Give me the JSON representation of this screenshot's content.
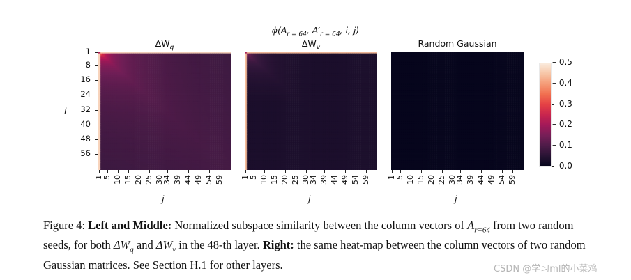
{
  "figure": {
    "suptitle": "ϕ(A_{r=64}, A'_{r=64}, i, j)",
    "panels": [
      {
        "title": "ΔW_q"
      },
      {
        "title": "ΔW_v"
      },
      {
        "title": "Random Gaussian"
      }
    ],
    "ylabel": "i",
    "xlabel": "j",
    "ytick_labels": [
      "1",
      "8",
      "16",
      "24",
      "32",
      "40",
      "48",
      "56"
    ],
    "xtick_labels": [
      "1",
      "5",
      "10",
      "15",
      "20",
      "25",
      "30",
      "34",
      "39",
      "44",
      "49",
      "54",
      "59"
    ],
    "colorbar_ticks": [
      "0.5",
      "0.4",
      "0.3",
      "0.2",
      "0.1",
      "0.0"
    ],
    "colormap": "rocket",
    "colormap_colors": [
      "#03051a",
      "#36193e",
      "#701f57",
      "#ae1759",
      "#e13342",
      "#f37651",
      "#f6b48f",
      "#faebdd"
    ]
  },
  "chart_data": [
    {
      "type": "heatmap",
      "title": "ΔW_q",
      "xlabel": "j",
      "ylabel": "i",
      "x_range": [
        1,
        64
      ],
      "y_range": [
        1,
        64
      ],
      "value_range": [
        0.0,
        0.5
      ],
      "pattern": "highest (~0.5) along first row and first column; decays toward ~0.05 as i and j increase"
    },
    {
      "type": "heatmap",
      "title": "ΔW_v",
      "xlabel": "j",
      "ylabel": "i",
      "x_range": [
        1,
        64
      ],
      "y_range": [
        1,
        64
      ],
      "value_range": [
        0.0,
        0.5
      ],
      "pattern": "high (~0.45) on first row and first column; quickly decays to ~0.03 elsewhere"
    },
    {
      "type": "heatmap",
      "title": "Random Gaussian",
      "xlabel": "j",
      "ylabel": "i",
      "x_range": [
        1,
        64
      ],
      "y_range": [
        1,
        64
      ],
      "value_range": [
        0.0,
        0.5
      ],
      "pattern": "near 0.0 everywhere"
    }
  ],
  "caption": {
    "label": "Figure 4:",
    "bold1": "Left and Middle:",
    "text1": "Normalized subspace similarity between the column vectors of",
    "math1": "A",
    "math1_sub": "r=64",
    "text2": "from two random seeds, for both",
    "math2": "ΔW",
    "math2_sub": "q",
    "and": "and",
    "math3": "ΔW",
    "math3_sub": "v",
    "text3": "in the 48-th layer.",
    "bold2": "Right:",
    "text4": "the same heat-map between the column vectors of two random Gaussian matrices. See Section H.1 for other layers."
  },
  "watermark": "CSDN @学习ml的小菜鸡"
}
